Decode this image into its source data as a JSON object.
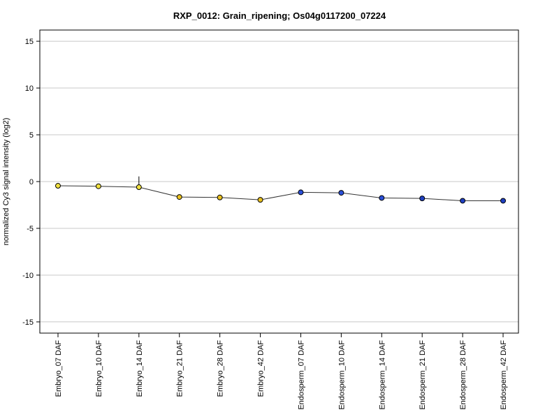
{
  "chart_data": {
    "type": "line",
    "title": "RXP_0012: Grain_ripening; Os04g0117200_07224",
    "xlabel": "",
    "ylabel": "normalized Cy3 signal intensity (log2)",
    "ylim": [
      -16.2,
      16.2
    ],
    "yticks": [
      -15,
      -10,
      -5,
      0,
      5,
      10,
      15
    ],
    "grid": "horizontal",
    "categories": [
      "Embryo_07 DAF",
      "Embryo_10 DAF",
      "Embryo_14 DAF",
      "Embryo_21 DAF",
      "Embryo_28 DAF",
      "Embryo_42 DAF",
      "Endosperm_07 DAF",
      "Endosperm_10 DAF",
      "Endosperm_14 DAF",
      "Endosperm_21 DAF",
      "Endosperm_28 DAF",
      "Endosperm_42 DAF"
    ],
    "values": [
      -0.45,
      -0.5,
      -0.6,
      -1.65,
      -1.7,
      -1.95,
      -1.15,
      -1.2,
      -1.75,
      -1.8,
      -2.05,
      -2.05
    ],
    "error_upper": [
      0.0,
      0.0,
      1.15,
      0.0,
      0.0,
      0.0,
      0.0,
      0.0,
      0.0,
      0.0,
      0.0,
      0.0
    ],
    "error_lower": [
      0.0,
      0.0,
      0.0,
      0.0,
      0.0,
      0.0,
      0.0,
      0.0,
      0.0,
      0.0,
      0.25,
      0.0
    ],
    "point_colors": [
      "#f0e040",
      "#f0e040",
      "#f0e040",
      "#e8c020",
      "#e8c020",
      "#e8c020",
      "#2a4fd8",
      "#2a4fd8",
      "#2a4fd8",
      "#1f3fc0",
      "#1f3fc0",
      "#1f3fc0"
    ],
    "line_color": "#333333",
    "grid_color": "#c8c8c8"
  }
}
